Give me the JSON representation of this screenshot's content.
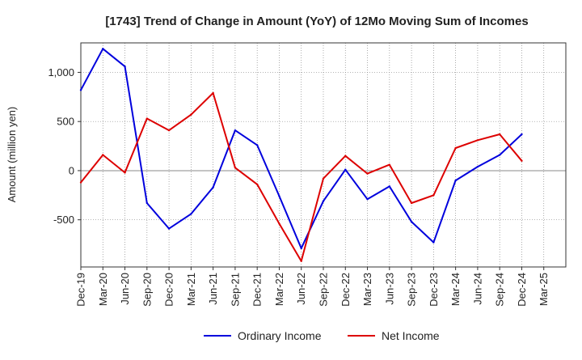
{
  "chart_data": {
    "type": "line",
    "title": "[1743]  Trend of Change in Amount (YoY) of 12Mo Moving Sum of Incomes",
    "ylabel": "Amount (million yen)",
    "xlabel": "",
    "ylim": [
      -980,
      1300
    ],
    "yticks": [
      -500,
      0,
      500,
      1000
    ],
    "ytick_labels": [
      "-500",
      "0",
      "500",
      "1,000"
    ],
    "x": [
      "Dec-19",
      "Mar-20",
      "Jun-20",
      "Sep-20",
      "Dec-20",
      "Mar-21",
      "Jun-21",
      "Sep-21",
      "Dec-21",
      "Mar-22",
      "Jun-22",
      "Sep-22",
      "Dec-22",
      "Mar-23",
      "Jun-23",
      "Sep-23",
      "Dec-23",
      "Mar-24",
      "Jun-24",
      "Sep-24",
      "Dec-24",
      "Mar-25"
    ],
    "series": [
      {
        "name": "Ordinary Income",
        "color": "#0000dd",
        "values": [
          820,
          1240,
          1060,
          -330,
          -590,
          -440,
          -170,
          410,
          260,
          -260,
          -790,
          -310,
          10,
          -290,
          -160,
          -520,
          -730,
          -100,
          40,
          160,
          370,
          null
        ]
      },
      {
        "name": "Net Income",
        "color": "#dd0000",
        "values": [
          -120,
          160,
          -20,
          530,
          410,
          570,
          790,
          30,
          -140,
          -540,
          -920,
          -80,
          150,
          -30,
          60,
          -330,
          -250,
          230,
          310,
          370,
          100,
          null
        ]
      }
    ],
    "grid": true,
    "legend_position": "bottom"
  }
}
